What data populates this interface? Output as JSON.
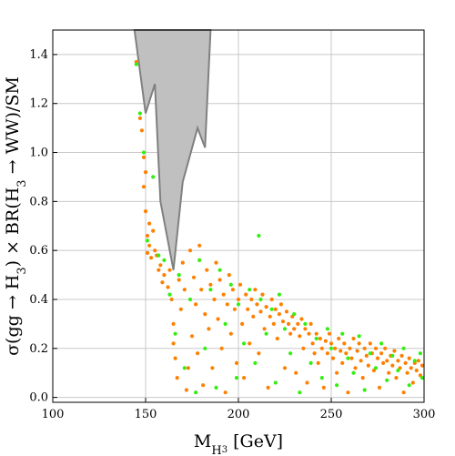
{
  "chart_data": {
    "type": "scatter",
    "xlabel": "M_{H_3} [GeV]",
    "ylabel": "σ(gg → H_3) × BR(H_3 → WW)/SM",
    "xlim": [
      100,
      300
    ],
    "ylim": [
      -0.02,
      1.5
    ],
    "x_ticks": [
      "100",
      "150",
      "200",
      "250",
      "300"
    ],
    "y_ticks": [
      "0.0",
      "0.2",
      "0.4",
      "0.6",
      "0.8",
      "1.0",
      "1.2",
      "1.4"
    ],
    "grid": true,
    "excluded_region": {
      "name": "excluded",
      "fill": "#c0c0c0",
      "stroke": "#808080",
      "x": [
        144,
        150,
        155,
        158,
        165,
        170,
        178,
        182,
        185,
        184,
        178,
        172,
        166,
        158,
        150,
        144
      ],
      "y": [
        1.5,
        1.16,
        1.28,
        0.8,
        0.52,
        0.88,
        1.1,
        1.02,
        1.5,
        1.5,
        1.5,
        1.5,
        1.5,
        1.5,
        1.5,
        1.5
      ]
    },
    "series": [
      {
        "color": "#ff8000",
        "points": [
          [
            145,
            1.37
          ],
          [
            147,
            1.14
          ],
          [
            148,
            1.09
          ],
          [
            149,
            0.98
          ],
          [
            149,
            0.86
          ],
          [
            150,
            0.92
          ],
          [
            150,
            0.76
          ],
          [
            151,
            0.66
          ],
          [
            151,
            0.59
          ],
          [
            152,
            0.71
          ],
          [
            152,
            0.62
          ],
          [
            153,
            0.57
          ],
          [
            154,
            0.68
          ],
          [
            155,
            0.6
          ],
          [
            156,
            0.58
          ],
          [
            157,
            0.52
          ],
          [
            158,
            0.54
          ],
          [
            159,
            0.47
          ],
          [
            160,
            0.5
          ],
          [
            162,
            0.45
          ],
          [
            163,
            0.52
          ],
          [
            164,
            0.4
          ],
          [
            165,
            0.3
          ],
          [
            165,
            0.22
          ],
          [
            166,
            0.16
          ],
          [
            167,
            0.08
          ],
          [
            168,
            0.48
          ],
          [
            169,
            0.36
          ],
          [
            170,
            0.55
          ],
          [
            171,
            0.44
          ],
          [
            172,
            0.03
          ],
          [
            173,
            0.12
          ],
          [
            174,
            0.6
          ],
          [
            175,
            0.25
          ],
          [
            176,
            0.49
          ],
          [
            177,
            0.38
          ],
          [
            178,
            0.18
          ],
          [
            179,
            0.62
          ],
          [
            180,
            0.44
          ],
          [
            181,
            0.05
          ],
          [
            182,
            0.34
          ],
          [
            183,
            0.52
          ],
          [
            184,
            0.28
          ],
          [
            185,
            0.46
          ],
          [
            186,
            0.12
          ],
          [
            187,
            0.4
          ],
          [
            188,
            0.55
          ],
          [
            189,
            0.32
          ],
          [
            190,
            0.48
          ],
          [
            191,
            0.2
          ],
          [
            192,
            0.42
          ],
          [
            193,
            0.02
          ],
          [
            194,
            0.38
          ],
          [
            195,
            0.5
          ],
          [
            196,
            0.26
          ],
          [
            197,
            0.44
          ],
          [
            198,
            0.36
          ],
          [
            199,
            0.14
          ],
          [
            200,
            0.4
          ],
          [
            201,
            0.46
          ],
          [
            202,
            0.3
          ],
          [
            203,
            0.08
          ],
          [
            204,
            0.42
          ],
          [
            205,
            0.36
          ],
          [
            206,
            0.22
          ],
          [
            207,
            0.4
          ],
          [
            208,
            0.33
          ],
          [
            209,
            0.44
          ],
          [
            210,
            0.38
          ],
          [
            211,
            0.18
          ],
          [
            212,
            0.35
          ],
          [
            213,
            0.42
          ],
          [
            214,
            0.28
          ],
          [
            215,
            0.37
          ],
          [
            216,
            0.04
          ],
          [
            217,
            0.33
          ],
          [
            218,
            0.4
          ],
          [
            219,
            0.3
          ],
          [
            220,
            0.36
          ],
          [
            221,
            0.24
          ],
          [
            222,
            0.34
          ],
          [
            223,
            0.38
          ],
          [
            224,
            0.31
          ],
          [
            225,
            0.12
          ],
          [
            226,
            0.35
          ],
          [
            227,
            0.3
          ],
          [
            228,
            0.26
          ],
          [
            229,
            0.33
          ],
          [
            230,
            0.28
          ],
          [
            231,
            0.1
          ],
          [
            232,
            0.3
          ],
          [
            233,
            0.25
          ],
          [
            234,
            0.32
          ],
          [
            235,
            0.2
          ],
          [
            236,
            0.28
          ],
          [
            237,
            0.06
          ],
          [
            238,
            0.26
          ],
          [
            239,
            0.3
          ],
          [
            240,
            0.22
          ],
          [
            241,
            0.18
          ],
          [
            242,
            0.26
          ],
          [
            243,
            0.14
          ],
          [
            244,
            0.24
          ],
          [
            245,
            0.2
          ],
          [
            246,
            0.04
          ],
          [
            247,
            0.23
          ],
          [
            248,
            0.18
          ],
          [
            249,
            0.26
          ],
          [
            250,
            0.22
          ],
          [
            251,
            0.16
          ],
          [
            252,
            0.2
          ],
          [
            253,
            0.1
          ],
          [
            254,
            0.24
          ],
          [
            255,
            0.19
          ],
          [
            256,
            0.14
          ],
          [
            257,
            0.22
          ],
          [
            258,
            0.18
          ],
          [
            259,
            0.02
          ],
          [
            260,
            0.2
          ],
          [
            261,
            0.16
          ],
          [
            262,
            0.24
          ],
          [
            263,
            0.12
          ],
          [
            264,
            0.19
          ],
          [
            265,
            0.22
          ],
          [
            266,
            0.15
          ],
          [
            267,
            0.08
          ],
          [
            268,
            0.2
          ],
          [
            269,
            0.17
          ],
          [
            270,
            0.13
          ],
          [
            271,
            0.22
          ],
          [
            272,
            0.18
          ],
          [
            273,
            0.11
          ],
          [
            274,
            0.2
          ],
          [
            275,
            0.16
          ],
          [
            276,
            0.04
          ],
          [
            277,
            0.18
          ],
          [
            278,
            0.14
          ],
          [
            279,
            0.2
          ],
          [
            280,
            0.15
          ],
          [
            281,
            0.1
          ],
          [
            282,
            0.17
          ],
          [
            283,
            0.13
          ],
          [
            284,
            0.19
          ],
          [
            285,
            0.08
          ],
          [
            286,
            0.15
          ],
          [
            287,
            0.12
          ],
          [
            288,
            0.17
          ],
          [
            289,
            0.02
          ],
          [
            290,
            0.14
          ],
          [
            291,
            0.1
          ],
          [
            292,
            0.16
          ],
          [
            293,
            0.12
          ],
          [
            294,
            0.06
          ],
          [
            295,
            0.14
          ],
          [
            296,
            0.11
          ],
          [
            297,
            0.15
          ],
          [
            298,
            0.09
          ],
          [
            299,
            0.13
          ]
        ]
      },
      {
        "color": "#33ee11",
        "points": [
          [
            145,
            1.36
          ],
          [
            147,
            1.16
          ],
          [
            149,
            1.0
          ],
          [
            151,
            0.64
          ],
          [
            154,
            0.9
          ],
          [
            157,
            0.58
          ],
          [
            160,
            0.56
          ],
          [
            163,
            0.42
          ],
          [
            166,
            0.26
          ],
          [
            168,
            0.5
          ],
          [
            171,
            0.12
          ],
          [
            174,
            0.4
          ],
          [
            177,
            0.02
          ],
          [
            179,
            0.56
          ],
          [
            182,
            0.2
          ],
          [
            185,
            0.44
          ],
          [
            188,
            0.04
          ],
          [
            190,
            0.52
          ],
          [
            193,
            0.3
          ],
          [
            196,
            0.46
          ],
          [
            199,
            0.08
          ],
          [
            200,
            0.38
          ],
          [
            203,
            0.22
          ],
          [
            206,
            0.44
          ],
          [
            209,
            0.14
          ],
          [
            211,
            0.66
          ],
          [
            212,
            0.4
          ],
          [
            215,
            0.26
          ],
          [
            218,
            0.36
          ],
          [
            220,
            0.06
          ],
          [
            222,
            0.42
          ],
          [
            225,
            0.28
          ],
          [
            228,
            0.18
          ],
          [
            230,
            0.34
          ],
          [
            233,
            0.02
          ],
          [
            236,
            0.3
          ],
          [
            239,
            0.14
          ],
          [
            242,
            0.24
          ],
          [
            245,
            0.08
          ],
          [
            248,
            0.28
          ],
          [
            250,
            0.2
          ],
          [
            253,
            0.05
          ],
          [
            256,
            0.26
          ],
          [
            259,
            0.16
          ],
          [
            262,
            0.1
          ],
          [
            265,
            0.25
          ],
          [
            268,
            0.03
          ],
          [
            271,
            0.18
          ],
          [
            274,
            0.12
          ],
          [
            277,
            0.22
          ],
          [
            280,
            0.07
          ],
          [
            283,
            0.17
          ],
          [
            286,
            0.11
          ],
          [
            289,
            0.2
          ],
          [
            292,
            0.05
          ],
          [
            295,
            0.15
          ],
          [
            298,
            0.18
          ],
          [
            299,
            0.08
          ]
        ]
      }
    ]
  }
}
